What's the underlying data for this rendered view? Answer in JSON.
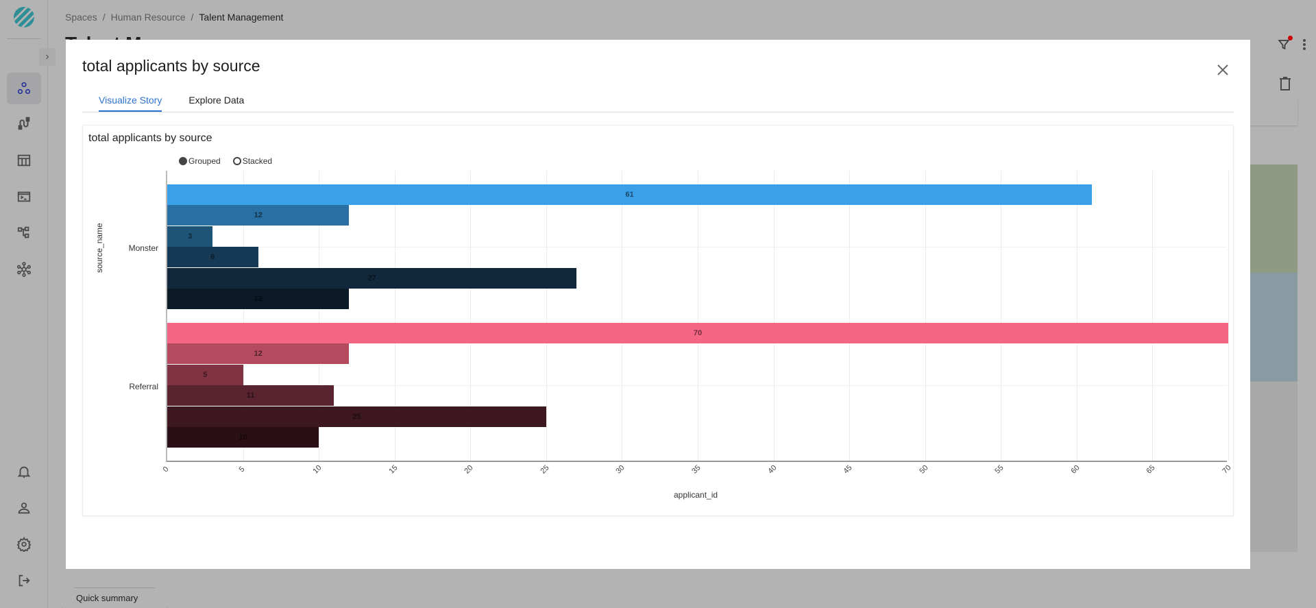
{
  "breadcrumb": [
    "Spaces",
    "Human Resource",
    "Talent Management"
  ],
  "background": {
    "page_title": "Talent M",
    "quick_summary_tab": "Quick summary"
  },
  "sidebar": {
    "items": [
      {
        "name": "spaces",
        "icon": "circles-icon",
        "active": true
      },
      {
        "name": "pipelines",
        "icon": "plug-icon"
      },
      {
        "name": "tables",
        "icon": "table-icon"
      },
      {
        "name": "terminal",
        "icon": "terminal-icon"
      },
      {
        "name": "lineage",
        "icon": "hierarchy-icon"
      },
      {
        "name": "network",
        "icon": "network-icon"
      }
    ],
    "bottom_items": [
      {
        "name": "notifications",
        "icon": "bell-icon"
      },
      {
        "name": "profile",
        "icon": "user-icon"
      },
      {
        "name": "settings",
        "icon": "gear-icon"
      },
      {
        "name": "logout",
        "icon": "logout-icon"
      }
    ]
  },
  "modal": {
    "title": "total applicants by source",
    "tabs": [
      {
        "label": "Visualize Story",
        "active": true
      },
      {
        "label": "Explore Data",
        "active": false
      }
    ],
    "chart_title": "total applicants by source",
    "legend": {
      "grouped": "Grouped",
      "stacked": "Stacked",
      "selected": "Grouped"
    }
  },
  "chart_data": {
    "type": "bar",
    "orientation": "horizontal",
    "mode": "grouped",
    "title": "total applicants by source",
    "xlabel": "applicant_id",
    "ylabel": "source_name",
    "xlim": [
      0,
      70
    ],
    "xticks": [
      0,
      5,
      10,
      15,
      20,
      25,
      30,
      35,
      40,
      45,
      50,
      55,
      60,
      65,
      70
    ],
    "categories": [
      "Monster",
      "Referral"
    ],
    "groups": [
      {
        "category": "Monster",
        "values": [
          61,
          12,
          3,
          6,
          27,
          12
        ],
        "colors": [
          "#3aa0e8",
          "#2870a3",
          "#1f5479",
          "#163a56",
          "#11283c",
          "#0b1a26"
        ]
      },
      {
        "category": "Referral",
        "values": [
          70,
          12,
          5,
          11,
          25,
          10
        ],
        "colors": [
          "#f56584",
          "#b34a5e",
          "#803343",
          "#5a2330",
          "#3d1820",
          "#2a1016"
        ]
      }
    ],
    "grid": true,
    "legend_position": "top"
  }
}
